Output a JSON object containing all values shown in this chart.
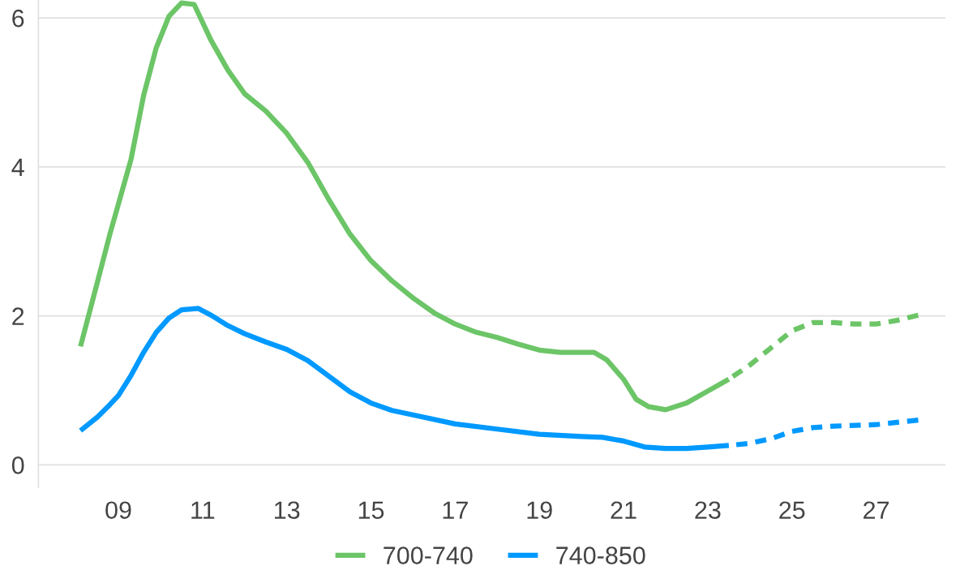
{
  "chart_data": {
    "type": "line",
    "xlim": [
      7.1,
      28.65
    ],
    "ylim": [
      -0.3,
      6.24
    ],
    "xticks": [
      {
        "value": 9,
        "label": "09"
      },
      11,
      13,
      15,
      17,
      19,
      21,
      23,
      25,
      27
    ],
    "yticks": [
      0,
      2,
      4,
      6
    ],
    "grid": "y",
    "legend": "bottom",
    "marker": "none",
    "series": [
      {
        "name": "700-740",
        "color": "#6cc567",
        "line_style": "solid",
        "x": [
          8.1,
          8.5,
          8.8,
          9.3,
          9.6,
          9.9,
          10.2,
          10.5,
          10.8,
          11.2,
          11.6,
          12.0,
          12.5,
          13.0,
          13.5,
          14.0,
          14.5,
          15.0,
          15.5,
          16.0,
          16.5,
          17.0,
          17.5,
          18.0,
          18.5,
          19.0,
          19.5,
          20.0,
          20.3,
          20.6,
          21.0,
          21.3,
          21.6,
          22.0,
          22.5,
          23.0,
          23.5
        ],
        "values": [
          1.59,
          2.45,
          3.1,
          4.1,
          4.96,
          5.6,
          6.02,
          6.2,
          6.18,
          5.7,
          5.3,
          4.98,
          4.75,
          4.45,
          4.06,
          3.56,
          3.1,
          2.74,
          2.47,
          2.24,
          2.04,
          1.89,
          1.78,
          1.71,
          1.62,
          1.54,
          1.51,
          1.51,
          1.51,
          1.41,
          1.15,
          0.88,
          0.78,
          0.74,
          0.83,
          0.99,
          1.15
        ]
      },
      {
        "color": "#6cc567",
        "line_style": "dashed",
        "x": [
          23.5,
          24,
          24.5,
          25,
          25.5,
          26,
          26.5,
          27,
          27.5,
          28
        ],
        "values": [
          1.15,
          1.34,
          1.57,
          1.8,
          1.91,
          1.91,
          1.89,
          1.89,
          1.94,
          2.01
        ]
      },
      {
        "name": "740-850",
        "color": "#0099ff",
        "line_style": "solid",
        "x": [
          8.1,
          8.5,
          8.8,
          9.0,
          9.3,
          9.6,
          9.9,
          10.2,
          10.5,
          10.9,
          11.2,
          11.6,
          12.0,
          12.5,
          13.0,
          13.5,
          14.0,
          14.5,
          15.0,
          15.5,
          16.0,
          17.0,
          18.0,
          19.0,
          20.0,
          20.5,
          21.0,
          21.5,
          22.0,
          22.5,
          23.0,
          23.5
        ],
        "values": [
          0.46,
          0.64,
          0.81,
          0.93,
          1.2,
          1.51,
          1.78,
          1.97,
          2.08,
          2.1,
          2.01,
          1.87,
          1.76,
          1.65,
          1.55,
          1.4,
          1.19,
          0.98,
          0.83,
          0.73,
          0.67,
          0.55,
          0.48,
          0.41,
          0.38,
          0.37,
          0.32,
          0.24,
          0.22,
          0.22,
          0.24,
          0.26
        ]
      },
      {
        "color": "#0099ff",
        "line_style": "dashed",
        "x": [
          23.5,
          24,
          24.5,
          25,
          25.5,
          26,
          27,
          28
        ],
        "values": [
          0.26,
          0.29,
          0.35,
          0.45,
          0.5,
          0.52,
          0.54,
          0.6
        ]
      }
    ]
  }
}
